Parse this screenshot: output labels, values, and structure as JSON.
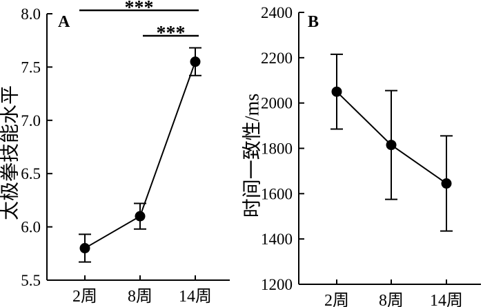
{
  "figure": {
    "background_color": "#ffffff",
    "line_color": "#000000"
  },
  "chart_data": [
    {
      "type": "line",
      "panel_label": "A",
      "title": "",
      "xlabel": "",
      "ylabel": "太极拳技能水平",
      "categories": [
        "2周",
        "8周",
        "14周"
      ],
      "ylim": [
        5.5,
        8.0
      ],
      "yticks": [
        "5.5",
        "6.0",
        "6.5",
        "7.0",
        "7.5",
        "8.0"
      ],
      "grid": "off",
      "legend": "none",
      "marker": "filled-circle",
      "color": "#000000",
      "series": [
        {
          "name": "太极拳技能水平",
          "values": [
            5.8,
            6.1,
            7.55
          ],
          "error_low": [
            5.67,
            5.98,
            7.42
          ],
          "error_high": [
            5.93,
            6.22,
            7.68
          ]
        }
      ],
      "significance": [
        {
          "from_index": 0,
          "to_index": 2,
          "label": "***"
        },
        {
          "from_index": 1,
          "to_index": 2,
          "label": "***"
        }
      ]
    },
    {
      "type": "line",
      "panel_label": "B",
      "title": "",
      "xlabel": "",
      "ylabel": "时间一致性/ms",
      "categories": [
        "2周",
        "8周",
        "14周"
      ],
      "ylim": [
        1200,
        2400
      ],
      "yticks": [
        "1200",
        "1400",
        "1600",
        "1800",
        "2000",
        "2200",
        "2400"
      ],
      "grid": "off",
      "legend": "none",
      "marker": "filled-circle",
      "color": "#000000",
      "series": [
        {
          "name": "时间一致性/ms",
          "values": [
            2050,
            1815,
            1645
          ],
          "error_low": [
            1885,
            1575,
            1435
          ],
          "error_high": [
            2215,
            2055,
            1855
          ]
        }
      ],
      "significance": []
    }
  ]
}
